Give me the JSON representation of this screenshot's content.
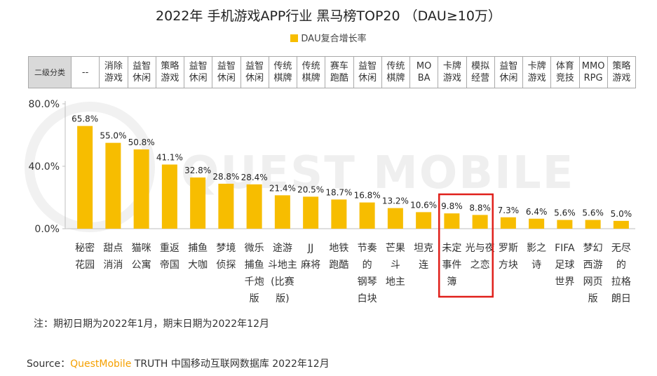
{
  "title": "2022年 手机游戏APP行业 黑马榜TOP20 （DAU≥10万）",
  "legend_label": "DAU复合增长率",
  "colors": {
    "bar": "#f7bd00",
    "highlight": "#e0201b",
    "header_bg": "#d9d9d9"
  },
  "table": {
    "header": "二级分类",
    "categories": [
      "--",
      "消除\n游戏",
      "益智\n休闲",
      "策略\n游戏",
      "益智\n休闲",
      "益智\n休闲",
      "益智\n休闲",
      "传统\n棋牌",
      "传统\n棋牌",
      "赛车\n跑酷",
      "益智\n休闲",
      "传统\n棋牌",
      "MO\nBA",
      "卡牌\n游戏",
      "模拟\n经营",
      "益智\n休闲",
      "卡牌\n游戏",
      "体育\n竞技",
      "MMO\nRPG",
      "策略\n游戏"
    ]
  },
  "chart_data": {
    "type": "bar",
    "title": "2022年 手机游戏APP行业 黑马榜TOP20 （DAU≥10万）",
    "series": [
      {
        "name": "DAU复合增长率",
        "values": [
          65.8,
          55.0,
          50.8,
          41.1,
          32.8,
          28.8,
          28.4,
          21.4,
          20.5,
          18.7,
          16.8,
          13.2,
          10.6,
          9.8,
          8.8,
          7.3,
          6.4,
          5.6,
          5.6,
          5.0
        ]
      }
    ],
    "categories": [
      "秘密花园",
      "甜点消消",
      "猫咪公寓",
      "重返帝国",
      "捕鱼大咖",
      "梦境侦探",
      "微乐捕鱼千炮版",
      "途游斗地主(比赛版)",
      "JJ麻将",
      "地铁跑酷",
      "节奏的钢琴白块",
      "芒果斗地主",
      "坦克连",
      "未定事件簿",
      "光与夜之恋",
      "罗斯方块",
      "影之诗",
      "FIFA足球世界",
      "梦幻西游网页版",
      "无尽的拉格朗日"
    ],
    "category_lines": [
      [
        "秘密",
        "花园"
      ],
      [
        "甜点",
        "消消"
      ],
      [
        "猫咪",
        "公寓"
      ],
      [
        "重返",
        "帝国"
      ],
      [
        "捕鱼",
        "大咖"
      ],
      [
        "梦境",
        "侦探"
      ],
      [
        "微乐",
        "捕鱼",
        "千炮",
        "版"
      ],
      [
        "途游",
        "斗地主",
        "(比赛",
        "版)"
      ],
      [
        "JJ",
        "麻将"
      ],
      [
        "地铁",
        "跑酷"
      ],
      [
        "节奏",
        "的",
        "钢琴",
        "白块"
      ],
      [
        "芒果",
        "斗",
        "地主"
      ],
      [
        "坦克",
        "连"
      ],
      [
        "未定",
        "事件",
        "簿"
      ],
      [
        "光与夜",
        "之恋"
      ],
      [
        "罗斯",
        "方块"
      ],
      [
        "影之",
        "诗"
      ],
      [
        "FIFA",
        "足球",
        "世界"
      ],
      [
        "梦幻",
        "西游",
        "网页",
        "版"
      ],
      [
        "无尽",
        "的",
        "拉格",
        "朗日"
      ]
    ],
    "data_labels": [
      "65.8%",
      "55.0%",
      "50.8%",
      "41.1%",
      "32.8%",
      "28.8%",
      "28.4%",
      "21.4%",
      "20.5%",
      "18.7%",
      "16.8%",
      "13.2%",
      "10.6%",
      "9.8%",
      "8.8%",
      "7.3%",
      "6.4%",
      "5.6%",
      "5.6%",
      "5.0%"
    ],
    "yticks": [
      "0.0%",
      "40.0%",
      "80.0%"
    ],
    "ytick_values": [
      0,
      40,
      80
    ],
    "ylim": [
      0,
      80
    ],
    "highlighted_categories": [
      "未定事件簿",
      "光与夜之恋"
    ],
    "legend_position": "top-center",
    "grid": false
  },
  "watermark": "QUEST MOBILE",
  "note": "注：期初日期为2022年1月，期末日期为2022年12月",
  "source": {
    "prefix": "Source：",
    "brand": "QuestMobile",
    "rest": " TRUTH 中国移动互联网数据库 2022年12月"
  }
}
